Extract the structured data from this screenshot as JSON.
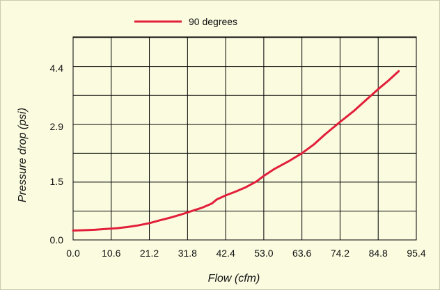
{
  "chart_data": {
    "type": "line",
    "title": "",
    "xlabel": "Flow (cfm)",
    "ylabel": "Pressure drop (psi)",
    "xlim": [
      0,
      95.4
    ],
    "ylim": [
      0,
      5.2
    ],
    "x_ticks": [
      "0.0",
      "10.6",
      "21.2",
      "31.8",
      "42.4",
      "53.0",
      "63.6",
      "74.2",
      "84.8",
      "95.4"
    ],
    "y_ticks": [
      {
        "value": 0.0,
        "label": "0.0"
      },
      {
        "value": 1.5,
        "label": "1.5"
      },
      {
        "value": 2.9,
        "label": "2.9"
      },
      {
        "value": 4.4,
        "label": "4.4"
      }
    ],
    "grid": true,
    "grid_x_step": 10.6,
    "grid_y_step": 0.74,
    "legend_position": "top",
    "series": [
      {
        "name": "90 degrees",
        "color": "#e21f3a",
        "points": [
          [
            0.0,
            0.24
          ],
          [
            3.0,
            0.25
          ],
          [
            6.0,
            0.26
          ],
          [
            9.0,
            0.28
          ],
          [
            12.0,
            0.3
          ],
          [
            15.0,
            0.33
          ],
          [
            18.0,
            0.37
          ],
          [
            21.2,
            0.43
          ],
          [
            24.0,
            0.5
          ],
          [
            27.0,
            0.57
          ],
          [
            30.0,
            0.65
          ],
          [
            33.0,
            0.74
          ],
          [
            36.0,
            0.83
          ],
          [
            38.5,
            0.93
          ],
          [
            40.0,
            1.04
          ],
          [
            42.4,
            1.14
          ],
          [
            45.0,
            1.23
          ],
          [
            48.0,
            1.35
          ],
          [
            51.0,
            1.5
          ],
          [
            53.0,
            1.64
          ],
          [
            56.0,
            1.82
          ],
          [
            60.0,
            2.02
          ],
          [
            63.6,
            2.22
          ],
          [
            67.0,
            2.45
          ],
          [
            70.0,
            2.7
          ],
          [
            74.2,
            3.02
          ],
          [
            78.0,
            3.3
          ],
          [
            81.0,
            3.55
          ],
          [
            84.8,
            3.86
          ],
          [
            87.5,
            4.07
          ],
          [
            90.5,
            4.32
          ]
        ]
      }
    ]
  }
}
